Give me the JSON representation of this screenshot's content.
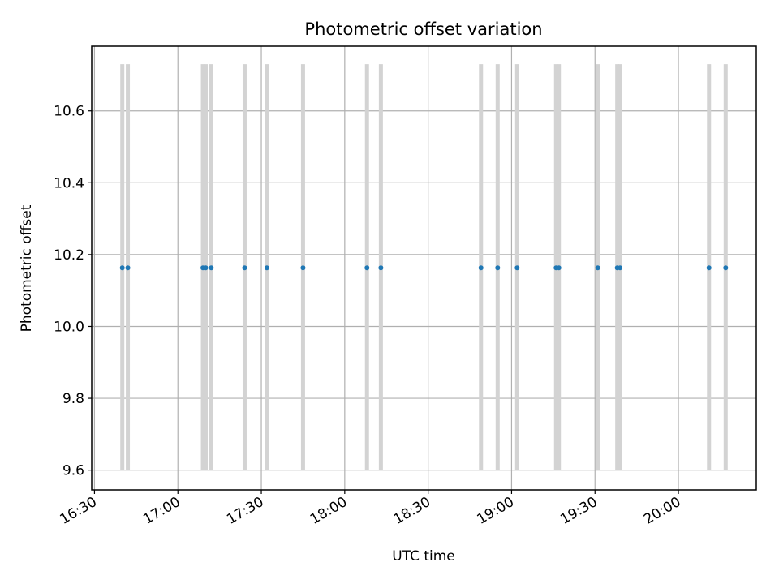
{
  "chart_data": {
    "type": "scatter",
    "title": "Photometric offset variation",
    "xlabel": "UTC time",
    "ylabel": "Photometric offset",
    "xlim": [
      "16:29",
      "20:28"
    ],
    "ylim": [
      9.545,
      10.78
    ],
    "x_ticks": [
      "16:30",
      "17:00",
      "17:30",
      "18:00",
      "18:30",
      "19:00",
      "19:30",
      "20:00"
    ],
    "y_ticks": [
      "9.6",
      "9.8",
      "10.0",
      "10.2",
      "10.4",
      "10.6"
    ],
    "grid": true,
    "vertical_bands": {
      "color": "#d3d3d3",
      "y_range": [
        9.6,
        10.73
      ],
      "x": [
        "16:40",
        "16:42",
        "17:09",
        "17:10",
        "17:12",
        "17:24",
        "17:32",
        "17:45",
        "18:08",
        "18:13",
        "18:49",
        "18:55",
        "19:02",
        "19:16",
        "19:17",
        "19:31",
        "19:38",
        "19:39",
        "20:11",
        "20:17"
      ]
    },
    "series": [
      {
        "color": "#1f77b4",
        "points": [
          {
            "x": "16:40",
            "y": 10.163
          },
          {
            "x": "16:42",
            "y": 10.163
          },
          {
            "x": "17:09",
            "y": 10.163
          },
          {
            "x": "17:10",
            "y": 10.163
          },
          {
            "x": "17:12",
            "y": 10.163
          },
          {
            "x": "17:24",
            "y": 10.163
          },
          {
            "x": "17:32",
            "y": 10.163
          },
          {
            "x": "17:45",
            "y": 10.163
          },
          {
            "x": "18:08",
            "y": 10.163
          },
          {
            "x": "18:13",
            "y": 10.163
          },
          {
            "x": "18:49",
            "y": 10.163
          },
          {
            "x": "18:55",
            "y": 10.163
          },
          {
            "x": "19:02",
            "y": 10.163
          },
          {
            "x": "19:16",
            "y": 10.163
          },
          {
            "x": "19:17",
            "y": 10.163
          },
          {
            "x": "19:31",
            "y": 10.163
          },
          {
            "x": "19:38",
            "y": 10.163
          },
          {
            "x": "19:39",
            "y": 10.163
          },
          {
            "x": "20:11",
            "y": 10.163
          },
          {
            "x": "20:17",
            "y": 10.163
          }
        ]
      }
    ]
  }
}
